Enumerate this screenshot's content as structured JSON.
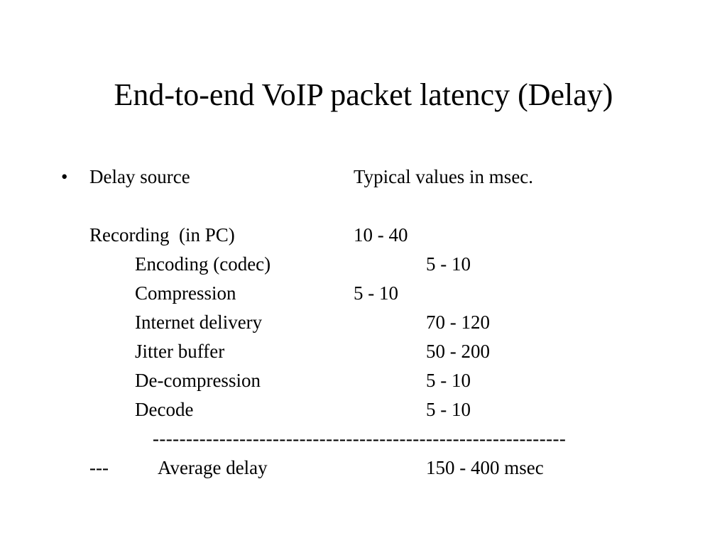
{
  "slide": {
    "title": "End-to-end VoIP packet latency (Delay)",
    "bullet_glyph": "•",
    "header": {
      "source_label": "Delay source",
      "values_label": "Typical values in msec."
    },
    "rows": [
      {
        "source": "Recording  (in PC)",
        "value": "10 - 40"
      },
      {
        "source": "Encoding (codec)",
        "value": "5 - 10"
      },
      {
        "source": "Compression",
        "value": "5 - 10"
      },
      {
        "source": "Internet delivery",
        "value": "70 - 120"
      },
      {
        "source": "Jitter buffer",
        "value": "50 - 200"
      },
      {
        "source": "De-compression",
        "value": "5 - 10"
      },
      {
        "source": "Decode",
        "value": "5 - 10"
      }
    ],
    "separator": "--------------------------------------------------------------",
    "total": {
      "prefix": "---",
      "label": "Average delay",
      "value": "150 - 400 msec"
    }
  }
}
